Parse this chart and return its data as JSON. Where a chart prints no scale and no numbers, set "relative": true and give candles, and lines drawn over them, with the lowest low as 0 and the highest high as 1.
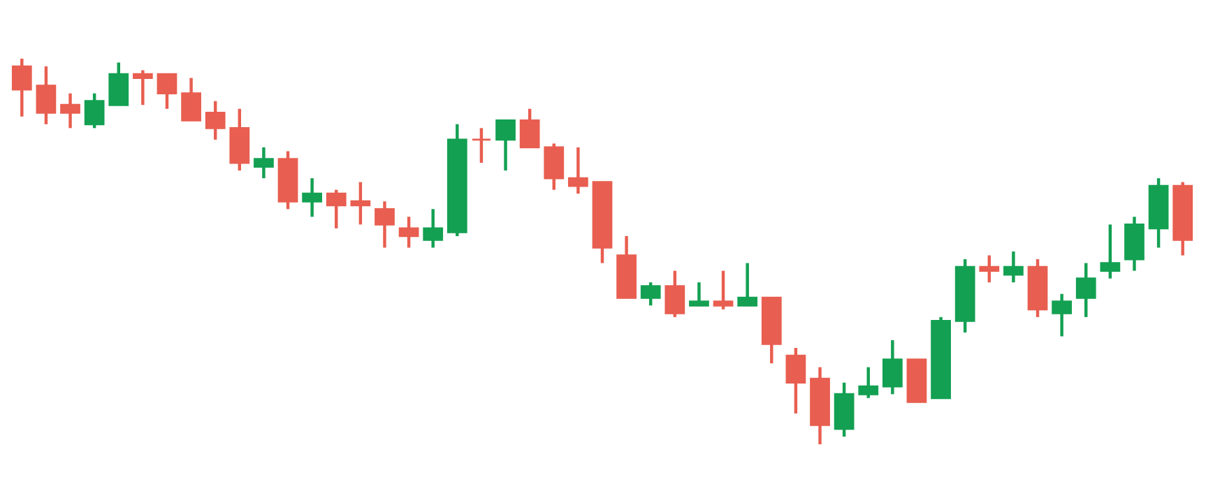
{
  "chart_data": {
    "type": "candlestick",
    "relative": true,
    "categories": [
      null,
      null,
      null,
      null,
      null,
      null,
      null,
      null,
      null,
      null,
      null,
      null,
      null,
      null,
      null,
      null,
      null,
      null,
      null,
      null,
      null,
      null,
      null,
      null,
      null,
      null,
      null,
      null,
      null,
      null,
      null,
      null,
      null,
      null,
      null,
      null,
      null,
      null,
      null,
      null,
      null,
      null,
      null,
      null,
      null,
      null,
      null,
      null,
      null
    ],
    "ohlc": [
      [
        0.98,
        1,
        0.85,
        0.92
      ],
      [
        0.93,
        0.98,
        0.83,
        0.86
      ],
      [
        0.88,
        0.91,
        0.82,
        0.86
      ],
      [
        0.83,
        0.91,
        0.82,
        0.89
      ],
      [
        0.88,
        0.99,
        0.88,
        0.96
      ],
      [
        0.96,
        0.97,
        0.88,
        0.95
      ],
      [
        0.96,
        0.96,
        0.87,
        0.91
      ],
      [
        0.91,
        0.95,
        0.84,
        0.84
      ],
      [
        0.86,
        0.89,
        0.79,
        0.82
      ],
      [
        0.82,
        0.87,
        0.71,
        0.73
      ],
      [
        0.72,
        0.77,
        0.69,
        0.74
      ],
      [
        0.74,
        0.76,
        0.61,
        0.63
      ],
      [
        0.63,
        0.69,
        0.59,
        0.65
      ],
      [
        0.65,
        0.66,
        0.56,
        0.62
      ],
      [
        0.63,
        0.68,
        0.57,
        0.62
      ],
      [
        0.61,
        0.63,
        0.51,
        0.57
      ],
      [
        0.56,
        0.59,
        0.51,
        0.54
      ],
      [
        0.53,
        0.61,
        0.51,
        0.56
      ],
      [
        0.55,
        0.83,
        0.54,
        0.79
      ],
      [
        0.79,
        0.82,
        0.73,
        0.79
      ],
      [
        0.79,
        0.84,
        0.71,
        0.84
      ],
      [
        0.84,
        0.87,
        0.77,
        0.77
      ],
      [
        0.77,
        0.78,
        0.66,
        0.69
      ],
      [
        0.69,
        0.77,
        0.65,
        0.67
      ],
      [
        0.68,
        0.68,
        0.47,
        0.51
      ],
      [
        0.49,
        0.54,
        0.38,
        0.38
      ],
      [
        0.38,
        0.42,
        0.36,
        0.41
      ],
      [
        0.41,
        0.45,
        0.33,
        0.34
      ],
      [
        0.36,
        0.42,
        0.36,
        0.37
      ],
      [
        0.37,
        0.45,
        0.35,
        0.36
      ],
      [
        0.36,
        0.47,
        0.36,
        0.38
      ],
      [
        0.38,
        0.38,
        0.21,
        0.26
      ],
      [
        0.23,
        0.25,
        0.08,
        0.16
      ],
      [
        0.17,
        0.2,
        0,
        0.05
      ],
      [
        0.04,
        0.16,
        0.02,
        0.13
      ],
      [
        0.13,
        0.2,
        0.12,
        0.15
      ],
      [
        0.15,
        0.27,
        0.13,
        0.22
      ],
      [
        0.22,
        0.22,
        0.11,
        0.11
      ],
      [
        0.12,
        0.33,
        0.12,
        0.32
      ],
      [
        0.32,
        0.48,
        0.29,
        0.46
      ],
      [
        0.46,
        0.49,
        0.42,
        0.45
      ],
      [
        0.44,
        0.5,
        0.42,
        0.46
      ],
      [
        0.46,
        0.48,
        0.33,
        0.35
      ],
      [
        0.34,
        0.39,
        0.28,
        0.37
      ],
      [
        0.38,
        0.47,
        0.33,
        0.43
      ],
      [
        0.45,
        0.57,
        0.43,
        0.47
      ],
      [
        0.48,
        0.59,
        0.45,
        0.57
      ],
      [
        0.56,
        0.69,
        0.51,
        0.67
      ],
      [
        0.67,
        0.68,
        0.49,
        0.53
      ]
    ],
    "colors": [
      "#e85e50",
      "#e85e50",
      "#e85e50",
      "#13a052",
      "#13a052",
      "#e85e50",
      "#e85e50",
      "#e85e50",
      "#e85e50",
      "#e85e50",
      "#13a052",
      "#e85e50",
      "#13a052",
      "#e85e50",
      "#e85e50",
      "#e85e50",
      "#e85e50",
      "#13a052",
      "#13a052",
      "#e85e50",
      "#13a052",
      "#e85e50",
      "#e85e50",
      "#e85e50",
      "#e85e50",
      "#e85e50",
      "#13a052",
      "#e85e50",
      "#13a052",
      "#e85e50",
      "#13a052",
      "#e85e50",
      "#e85e50",
      "#e85e50",
      "#13a052",
      "#13a052",
      "#13a052",
      "#e85e50",
      "#13a052",
      "#13a052",
      "#e85e50",
      "#13a052",
      "#e85e50",
      "#13a052",
      "#13a052",
      "#13a052",
      "#13a052",
      "#13a052",
      "#e85e50"
    ]
  }
}
